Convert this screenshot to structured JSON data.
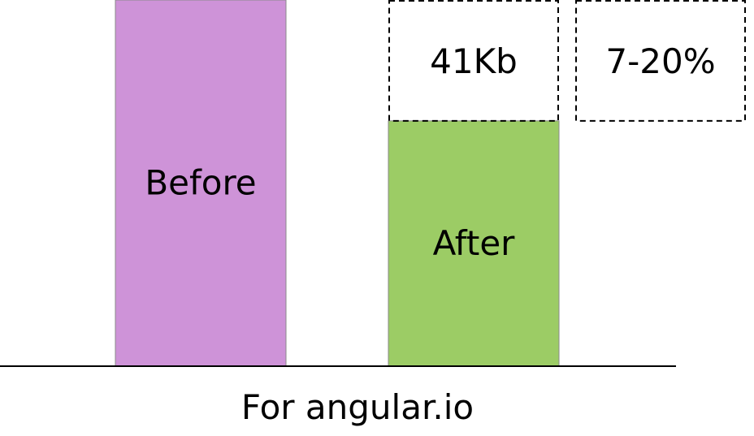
{
  "chart_data": {
    "type": "bar",
    "xlabel": "For angular.io",
    "categories": [
      "Before",
      "After"
    ],
    "values": [
      100,
      67
    ],
    "colors": [
      "#ce93d8",
      "#9ccc65"
    ],
    "ylim": [
      0,
      100
    ],
    "grid": false,
    "annotations": [
      {
        "text": "41Kb",
        "style": "dashed-box",
        "anchor": "After",
        "range": [
          67,
          100
        ]
      },
      {
        "text": "7-20%",
        "style": "dashed-box",
        "anchor": "right-of-After",
        "range": [
          67,
          100
        ]
      }
    ]
  }
}
